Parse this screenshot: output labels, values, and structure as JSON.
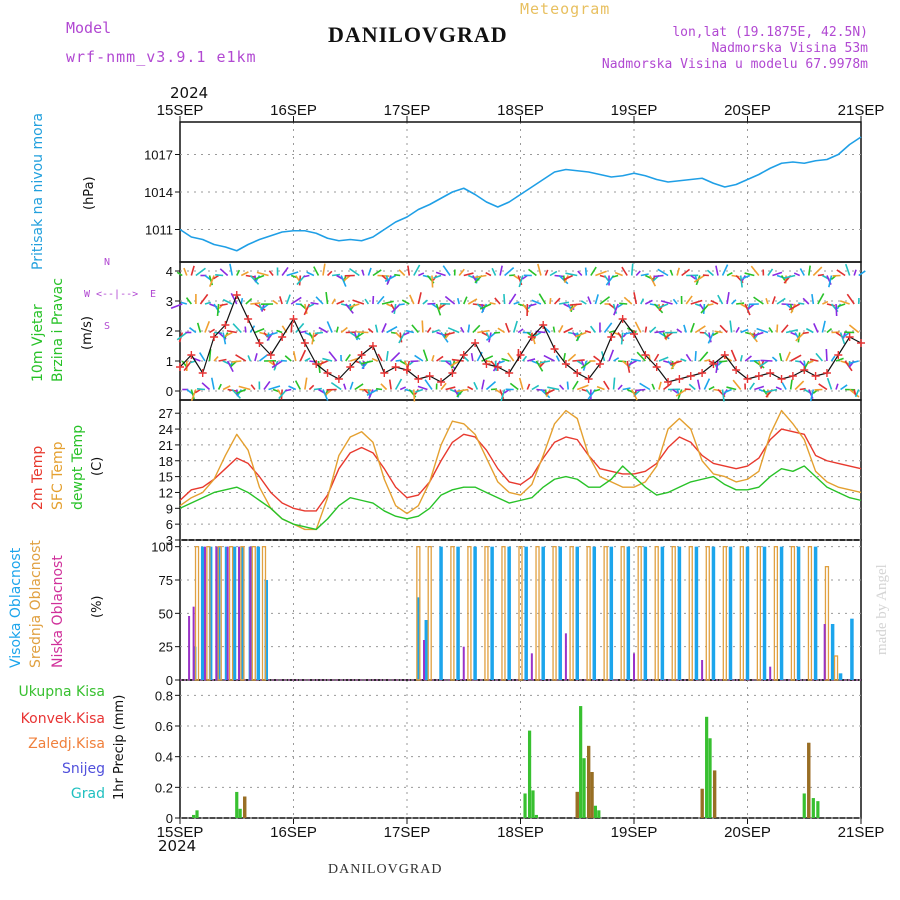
{
  "header": {
    "model_label": "Model",
    "model_name": "wrf-nmm_v3.9.1 e1km",
    "station": "DANILOVGRAD",
    "meteogram": "Meteogram",
    "lonlat": "lon,lat (19.1875E, 42.5N)",
    "altitude": "Nadmorska Visina 53m",
    "model_altitude": "Nadmorska Visina u modelu 67.9978m",
    "year": "2024",
    "watermark": "made by Angel",
    "footer_station": "DANILOVGRAD"
  },
  "colors": {
    "pressure": "#1f9fe6",
    "temp2m": "#e8392e",
    "sfc": "#e4a030",
    "dewpt": "#28c228",
    "high_cloud": "#1ca5ec",
    "mid_cloud": "#e0a040",
    "low_cloud": "#9a32c8",
    "total_precip": "#38c030",
    "conv_precip": "#e83434",
    "grid": "#9a9a9a",
    "title_purple": "#b148d2",
    "title_orange": "#e8c060"
  },
  "x_axis": {
    "top_labels": [
      "15SEP",
      "16SEP",
      "17SEP",
      "18SEP",
      "19SEP",
      "20SEP",
      "21SEP"
    ],
    "bottom_labels": [
      "15SEP",
      "16SEP",
      "17SEP",
      "18SEP",
      "19SEP",
      "20SEP",
      "21SEP"
    ]
  },
  "panels": {
    "pressure": {
      "label": "Pritisak na nivou mora",
      "unit": "(hPa)"
    },
    "wind": {
      "label1": "10m Vjetar",
      "label2": "Brzina i Pravac",
      "unit": "(m/s)",
      "compass_n": "N",
      "compass_s": "S",
      "compass_w": "W",
      "compass_e": "E"
    },
    "temp": {
      "label1": "2m Temp",
      "label2": "SFC Temp",
      "label3": "dewpt Temp",
      "unit": "(C)"
    },
    "cloud": {
      "label1": "Visoka Oblacnost",
      "label2": "Srednja Oblacnost",
      "label3": "Niska Oblacnost",
      "unit": "(%)"
    },
    "precip": {
      "legend": [
        "Ukupna Kisa",
        "Konvek.Kisa",
        "Zaledj.Kisa",
        "Snijeg",
        "Grad"
      ],
      "unit": "1hr Precip (mm)"
    }
  },
  "chart_data": [
    {
      "type": "line",
      "name": "pressure",
      "ylabel": "(hPa)",
      "ylim": [
        1008.4,
        1019.6
      ],
      "yticks": [
        1011,
        1014,
        1017
      ],
      "x_days": [
        0,
        0.1,
        0.2,
        0.3,
        0.4,
        0.5,
        0.6,
        0.7,
        0.8,
        0.9,
        1,
        1.1,
        1.2,
        1.3,
        1.4,
        1.5,
        1.6,
        1.7,
        1.8,
        1.9,
        2,
        2.1,
        2.2,
        2.3,
        2.4,
        2.5,
        2.6,
        2.7,
        2.8,
        2.9,
        3,
        3.1,
        3.2,
        3.3,
        3.4,
        3.5,
        3.6,
        3.7,
        3.8,
        3.9,
        4,
        4.1,
        4.2,
        4.3,
        4.4,
        4.5,
        4.6,
        4.7,
        4.8,
        4.9,
        5,
        5.1,
        5.2,
        5.3,
        5.4,
        5.5,
        5.6,
        5.7,
        5.8,
        5.9,
        6
      ],
      "values": [
        1011.0,
        1010.4,
        1010.2,
        1009.8,
        1009.6,
        1009.3,
        1009.8,
        1010.2,
        1010.5,
        1010.8,
        1010.9,
        1010.9,
        1010.7,
        1010.3,
        1010.1,
        1010.2,
        1010.1,
        1010.4,
        1011.0,
        1011.6,
        1012.0,
        1012.6,
        1013.0,
        1013.5,
        1014.0,
        1014.3,
        1013.8,
        1013.2,
        1012.8,
        1013.2,
        1013.8,
        1014.4,
        1015.0,
        1015.6,
        1015.8,
        1015.7,
        1015.6,
        1015.4,
        1015.2,
        1015.3,
        1015.5,
        1015.3,
        1015.0,
        1014.8,
        1014.9,
        1015.0,
        1015.1,
        1014.7,
        1014.4,
        1014.6,
        1015.0,
        1015.4,
        1015.9,
        1016.3,
        1016.4,
        1016.3,
        1016.5,
        1016.6,
        1017.0,
        1017.8,
        1018.4
      ],
      "series": [
        {
          "name": "Pritisak na nivou mora"
        }
      ]
    },
    {
      "type": "line",
      "name": "wind",
      "ylabel": "(m/s)",
      "ylim": [
        -0.3,
        4.3
      ],
      "yticks": [
        0,
        1,
        2,
        3,
        4
      ],
      "series": [
        {
          "name": "10m Vjetar Brzina"
        }
      ],
      "x_days": [
        0,
        0.1,
        0.2,
        0.3,
        0.4,
        0.5,
        0.6,
        0.7,
        0.8,
        0.9,
        1,
        1.1,
        1.2,
        1.3,
        1.4,
        1.5,
        1.6,
        1.7,
        1.8,
        1.9,
        2,
        2.1,
        2.2,
        2.3,
        2.4,
        2.5,
        2.6,
        2.7,
        2.8,
        2.9,
        3,
        3.1,
        3.2,
        3.3,
        3.4,
        3.5,
        3.6,
        3.7,
        3.8,
        3.9,
        4,
        4.1,
        4.2,
        4.3,
        4.4,
        4.5,
        4.6,
        4.7,
        4.8,
        4.9,
        5,
        5.1,
        5.2,
        5.3,
        5.4,
        5.5,
        5.6,
        5.7,
        5.8,
        5.9,
        6
      ],
      "values": [
        0.8,
        1.2,
        0.6,
        1.8,
        2.2,
        3.2,
        2.4,
        1.6,
        1.2,
        1.8,
        2.4,
        1.6,
        0.9,
        0.6,
        0.4,
        0.8,
        1.2,
        1.5,
        0.6,
        0.8,
        0.7,
        0.4,
        0.5,
        0.3,
        0.6,
        1.2,
        1.6,
        0.9,
        0.8,
        0.6,
        1.2,
        1.8,
        2.2,
        1.4,
        0.9,
        0.6,
        0.4,
        0.9,
        1.8,
        2.4,
        1.9,
        1.2,
        0.8,
        0.3,
        0.4,
        0.5,
        0.6,
        0.9,
        1.2,
        0.7,
        0.4,
        0.5,
        0.6,
        0.4,
        0.5,
        0.7,
        0.5,
        0.6,
        1.2,
        1.8,
        1.6
      ]
    },
    {
      "type": "line",
      "name": "temperature",
      "ylabel": "(C)",
      "ylim": [
        3,
        29.5
      ],
      "yticks": [
        3,
        6,
        9,
        12,
        15,
        18,
        21,
        24,
        27
      ],
      "x_days": [
        0,
        0.1,
        0.2,
        0.3,
        0.4,
        0.5,
        0.6,
        0.7,
        0.8,
        0.9,
        1,
        1.1,
        1.2,
        1.3,
        1.4,
        1.5,
        1.6,
        1.7,
        1.8,
        1.9,
        2,
        2.1,
        2.2,
        2.3,
        2.4,
        2.5,
        2.6,
        2.7,
        2.8,
        2.9,
        3,
        3.1,
        3.2,
        3.3,
        3.4,
        3.5,
        3.6,
        3.7,
        3.8,
        3.9,
        4,
        4.1,
        4.2,
        4.3,
        4.4,
        4.5,
        4.6,
        4.7,
        4.8,
        4.9,
        5,
        5.1,
        5.2,
        5.3,
        5.4,
        5.5,
        5.6,
        5.7,
        5.8,
        5.9,
        6
      ],
      "series": [
        {
          "name": "2m Temp",
          "values": [
            10.5,
            12.5,
            13.0,
            14.5,
            16.5,
            18.5,
            17.5,
            15.0,
            12.0,
            10.0,
            9.0,
            8.5,
            8.5,
            11.5,
            16.5,
            19.5,
            20.5,
            19.5,
            16.5,
            13.0,
            11.0,
            11.5,
            14.0,
            18.0,
            21.5,
            23.0,
            22.5,
            20.0,
            16.5,
            14.0,
            13.5,
            15.0,
            18.5,
            21.5,
            22.5,
            22.0,
            19.0,
            16.5,
            16.0,
            15.5,
            15.5,
            16.0,
            17.5,
            20.5,
            22.5,
            21.5,
            19.0,
            17.5,
            17.0,
            16.5,
            17.0,
            18.5,
            22.0,
            24.0,
            23.5,
            23.0,
            19.0,
            18.0,
            17.5,
            17.0,
            16.5
          ]
        },
        {
          "name": "SFC Temp",
          "values": [
            9.5,
            11.0,
            12.0,
            14.5,
            19.0,
            23.0,
            20.0,
            13.0,
            9.0,
            7.0,
            6.0,
            5.0,
            5.0,
            11.0,
            19.0,
            22.5,
            23.5,
            21.5,
            14.5,
            9.5,
            8.0,
            9.5,
            14.0,
            21.0,
            25.5,
            25.0,
            23.0,
            18.5,
            14.0,
            12.0,
            11.5,
            13.5,
            19.0,
            25.0,
            27.5,
            26.0,
            19.0,
            15.0,
            14.0,
            13.0,
            13.0,
            14.0,
            17.0,
            24.0,
            26.0,
            24.0,
            18.0,
            15.5,
            15.0,
            14.0,
            14.5,
            16.0,
            23.0,
            27.5,
            25.0,
            22.0,
            16.0,
            14.0,
            13.0,
            12.5,
            12.0
          ]
        },
        {
          "name": "dewpt Temp",
          "values": [
            9.0,
            10.0,
            11.0,
            12.0,
            12.5,
            13.0,
            12.0,
            10.5,
            9.0,
            7.0,
            6.0,
            5.5,
            5.0,
            7.0,
            9.5,
            11.0,
            10.5,
            10.0,
            8.5,
            7.5,
            7.0,
            7.5,
            9.0,
            11.5,
            12.5,
            13.0,
            13.0,
            12.0,
            11.0,
            10.0,
            10.5,
            11.0,
            13.0,
            14.5,
            15.0,
            14.5,
            13.0,
            13.0,
            14.5,
            17.0,
            15.0,
            13.0,
            11.5,
            12.0,
            13.0,
            14.0,
            14.5,
            15.0,
            13.5,
            12.5,
            12.5,
            13.0,
            15.0,
            16.5,
            16.0,
            17.0,
            15.0,
            13.0,
            12.0,
            11.0,
            10.5
          ]
        }
      ]
    },
    {
      "type": "bar",
      "name": "cloud",
      "ylabel": "(%)",
      "ylim": [
        0,
        105
      ],
      "yticks": [
        0,
        25,
        50,
        75,
        100
      ],
      "series": [
        {
          "name": "Visoka Oblacnost",
          "x_days": [
            0.13,
            0.2,
            0.27,
            0.34,
            0.41,
            0.48,
            0.55,
            0.62,
            0.69,
            0.76,
            2.1,
            2.17,
            2.3,
            2.45,
            2.6,
            2.75,
            2.9,
            3.05,
            3.2,
            3.35,
            3.5,
            3.65,
            3.8,
            3.95,
            4.1,
            4.25,
            4.4,
            4.55,
            4.7,
            4.85,
            5.0,
            5.15,
            5.3,
            5.45,
            5.6,
            5.75,
            5.82,
            5.92
          ],
          "values": [
            25,
            100,
            100,
            100,
            100,
            100,
            100,
            100,
            100,
            75,
            62,
            45,
            100,
            100,
            100,
            100,
            100,
            100,
            100,
            100,
            100,
            100,
            100,
            100,
            100,
            100,
            100,
            100,
            100,
            100,
            100,
            100,
            100,
            100,
            100,
            42,
            5,
            46
          ]
        },
        {
          "name": "Srednja Oblacnost",
          "x_days": [
            0.15,
            0.25,
            0.35,
            0.45,
            0.55,
            0.65,
            0.74,
            2.1,
            2.2,
            2.4,
            2.55,
            2.7,
            2.85,
            3.0,
            3.15,
            3.3,
            3.45,
            3.6,
            3.75,
            3.9,
            4.05,
            4.2,
            4.35,
            4.5,
            4.65,
            4.8,
            4.95,
            5.1,
            5.25,
            5.4,
            5.55,
            5.7,
            5.78
          ],
          "values": [
            100,
            100,
            100,
            100,
            100,
            100,
            100,
            100,
            100,
            100,
            100,
            100,
            100,
            100,
            100,
            100,
            100,
            100,
            100,
            100,
            100,
            100,
            100,
            100,
            100,
            100,
            100,
            100,
            100,
            100,
            100,
            85,
            18
          ]
        },
        {
          "name": "Niska Oblacnost",
          "x_days": [
            0.08,
            0.12,
            0.22,
            0.32,
            0.42,
            0.52,
            0.62,
            2.15,
            2.5,
            3.1,
            3.4,
            4.0,
            4.6,
            5.2,
            5.68
          ],
          "values": [
            48,
            55,
            100,
            100,
            100,
            100,
            100,
            30,
            25,
            20,
            35,
            20,
            15,
            10,
            42
          ]
        }
      ]
    },
    {
      "type": "bar",
      "name": "precipitation",
      "ylabel": "1hr Precip (mm)",
      "ylim": [
        0,
        0.9
      ],
      "yticks": [
        0,
        0.2,
        0.4,
        0.6,
        0.8
      ],
      "series": [
        {
          "name": "Ukupna Kisa",
          "x_days": [
            0.12,
            0.15,
            0.5,
            0.53,
            0.57,
            3.04,
            3.08,
            3.11,
            3.14,
            3.5,
            3.53,
            3.56,
            3.6,
            3.63,
            3.66,
            3.69,
            4.6,
            4.64,
            4.67,
            4.71,
            5.5,
            5.54,
            5.58,
            5.62
          ],
          "values": [
            0.02,
            0.05,
            0.17,
            0.06,
            0.14,
            0.16,
            0.57,
            0.18,
            0.02,
            0.17,
            0.73,
            0.39,
            0.47,
            0.3,
            0.08,
            0.05,
            0.19,
            0.66,
            0.52,
            0.31,
            0.16,
            0.49,
            0.13,
            0.11
          ]
        },
        {
          "name": "Konvek.Kisa",
          "x_days": [
            0.57,
            3.5,
            3.6,
            3.63,
            4.6,
            4.71,
            5.54
          ],
          "values": [
            0.14,
            0.17,
            0.47,
            0.3,
            0.19,
            0.31,
            0.49
          ]
        }
      ]
    }
  ]
}
